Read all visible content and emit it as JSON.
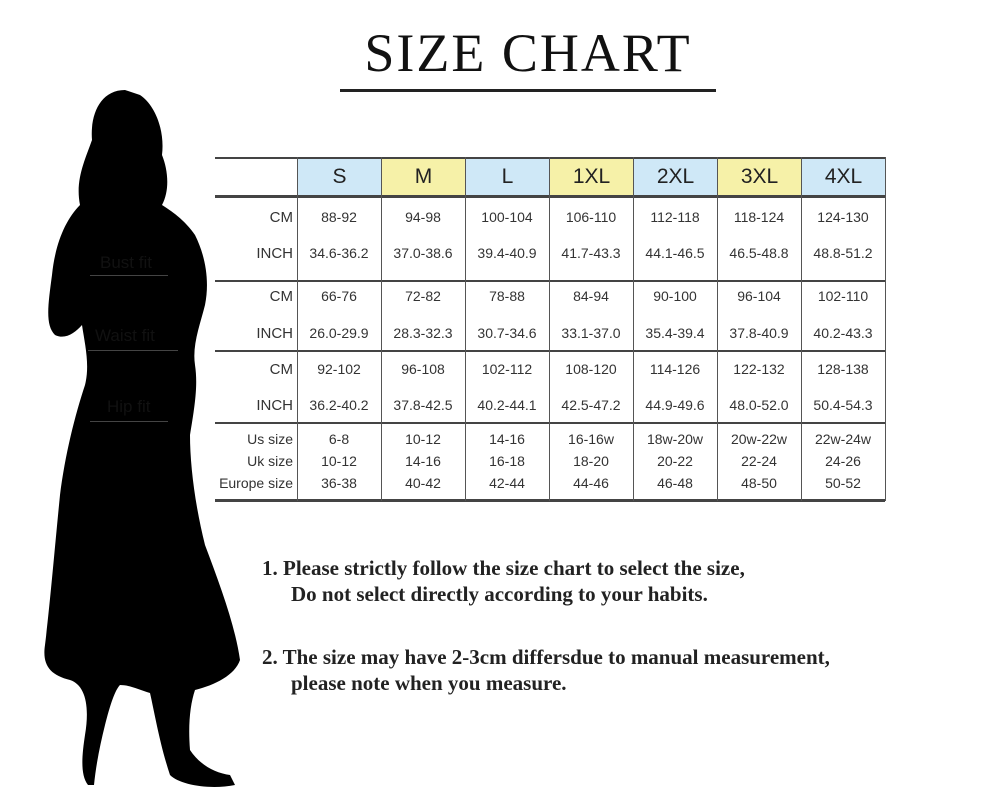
{
  "title": "SIZE CHART",
  "fit_labels": {
    "bust": "Bust fit",
    "waist": "Waist fit",
    "hip": "Hip fit"
  },
  "header_colors": {
    "blue": "#cfe8f7",
    "yellow": "#f6f1a8"
  },
  "sizes": [
    "S",
    "M",
    "L",
    "1XL",
    "2XL",
    "3XL",
    "4XL"
  ],
  "rows": [
    {
      "label": "CM",
      "values": [
        "88-92",
        "94-98",
        "100-104",
        "106-110",
        "112-118",
        "118-124",
        "124-130"
      ]
    },
    {
      "label": "INCH",
      "values": [
        "34.6-36.2",
        "37.0-38.6",
        "39.4-40.9",
        "41.7-43.3",
        "44.1-46.5",
        "46.5-48.8",
        "48.8-51.2"
      ]
    },
    {
      "label": "CM",
      "values": [
        "66-76",
        "72-82",
        "78-88",
        "84-94",
        "90-100",
        "96-104",
        "102-110"
      ]
    },
    {
      "label": "INCH",
      "values": [
        "26.0-29.9",
        "28.3-32.3",
        "30.7-34.6",
        "33.1-37.0",
        "35.4-39.4",
        "37.8-40.9",
        "40.2-43.3"
      ]
    },
    {
      "label": "CM",
      "values": [
        "92-102",
        "96-108",
        "102-112",
        "108-120",
        "114-126",
        "122-132",
        "128-138"
      ]
    },
    {
      "label": "INCH",
      "values": [
        "36.2-40.2",
        "37.8-42.5",
        "40.2-44.1",
        "42.5-47.2",
        "44.9-49.6",
        "48.0-52.0",
        "50.4-54.3"
      ]
    },
    {
      "label": "Us size",
      "values": [
        "6-8",
        "10-12",
        "14-16",
        "16-16w",
        "18w-20w",
        "20w-22w",
        "22w-24w"
      ]
    },
    {
      "label": "Uk size",
      "values": [
        "10-12",
        "14-16",
        "16-18",
        "18-20",
        "20-22",
        "22-24",
        "24-26"
      ]
    },
    {
      "label": "Europe size",
      "values": [
        "36-38",
        "40-42",
        "42-44",
        "44-46",
        "46-48",
        "48-50",
        "50-52"
      ]
    }
  ],
  "notes": [
    {
      "line1": "1.  Please strictly follow the size chart to select the size,",
      "line2": "Do not select directly according to your habits."
    },
    {
      "line1": "2.  The size may have 2-3cm differsdue to manual measurement,",
      "line2": "please note when you measure."
    }
  ]
}
